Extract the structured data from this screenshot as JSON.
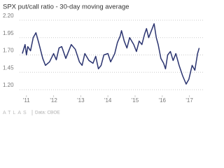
{
  "chart_data": {
    "type": "line",
    "title": "SPX put/call ratio - 30-day moving average",
    "brand": "ATLAS",
    "source": "Data: CBOE",
    "x": [
      2010.85,
      2010.95,
      2011.0,
      2011.05,
      2011.15,
      2011.25,
      2011.35,
      2011.45,
      2011.6,
      2011.7,
      2011.85,
      2012.0,
      2012.1,
      2012.2,
      2012.3,
      2012.45,
      2012.55,
      2012.65,
      2012.8,
      2012.95,
      2013.05,
      2013.15,
      2013.3,
      2013.45,
      2013.55,
      2013.65,
      2013.75,
      2013.85,
      2014.0,
      2014.1,
      2014.25,
      2014.35,
      2014.45,
      2014.5,
      2014.6,
      2014.7,
      2014.8,
      2014.95,
      2015.05,
      2015.15,
      2015.25,
      2015.35,
      2015.42,
      2015.5,
      2015.6,
      2015.7,
      2015.78,
      2015.85,
      2015.95,
      2016.05,
      2016.12,
      2016.2,
      2016.3,
      2016.4,
      2016.5,
      2016.62,
      2016.75,
      2016.88,
      2016.98,
      2017.1,
      2017.2,
      2017.3,
      2017.36
    ],
    "series": [
      {
        "name": "SPX put/call ratio",
        "color": "#2b3470",
        "values": [
          1.72,
          1.85,
          1.7,
          1.82,
          1.76,
          1.95,
          2.02,
          1.88,
          1.65,
          1.55,
          1.6,
          1.72,
          1.63,
          1.8,
          1.82,
          1.65,
          1.75,
          1.85,
          1.78,
          1.6,
          1.55,
          1.72,
          1.62,
          1.58,
          1.68,
          1.5,
          1.55,
          1.7,
          1.72,
          1.6,
          1.72,
          1.88,
          1.97,
          2.05,
          1.9,
          1.8,
          1.95,
          1.85,
          1.75,
          1.9,
          1.85,
          2.0,
          2.08,
          1.95,
          2.05,
          2.15,
          1.95,
          1.85,
          1.65,
          1.58,
          1.5,
          1.7,
          1.75,
          1.62,
          1.72,
          1.55,
          1.4,
          1.28,
          1.35,
          1.55,
          1.48,
          1.72,
          1.8
        ]
      }
    ],
    "xlim": [
      2010.8,
      2017.5
    ],
    "xticks": [
      {
        "value": 2011,
        "label": "'11"
      },
      {
        "value": 2012,
        "label": "'12"
      },
      {
        "value": 2013,
        "label": "'13"
      },
      {
        "value": 2014,
        "label": "'14"
      },
      {
        "value": 2015,
        "label": "'15"
      },
      {
        "value": 2016,
        "label": "'16"
      },
      {
        "value": 2017,
        "label": "'17"
      }
    ],
    "ylim": [
      1.12,
      2.28
    ],
    "yticks": [
      {
        "value": 1.2,
        "label": "1.20"
      },
      {
        "value": 1.45,
        "label": "1.45"
      },
      {
        "value": 1.7,
        "label": "1.70"
      },
      {
        "value": 1.95,
        "label": "1.95"
      },
      {
        "value": 2.2,
        "label": "2.20"
      }
    ],
    "grid": true
  }
}
